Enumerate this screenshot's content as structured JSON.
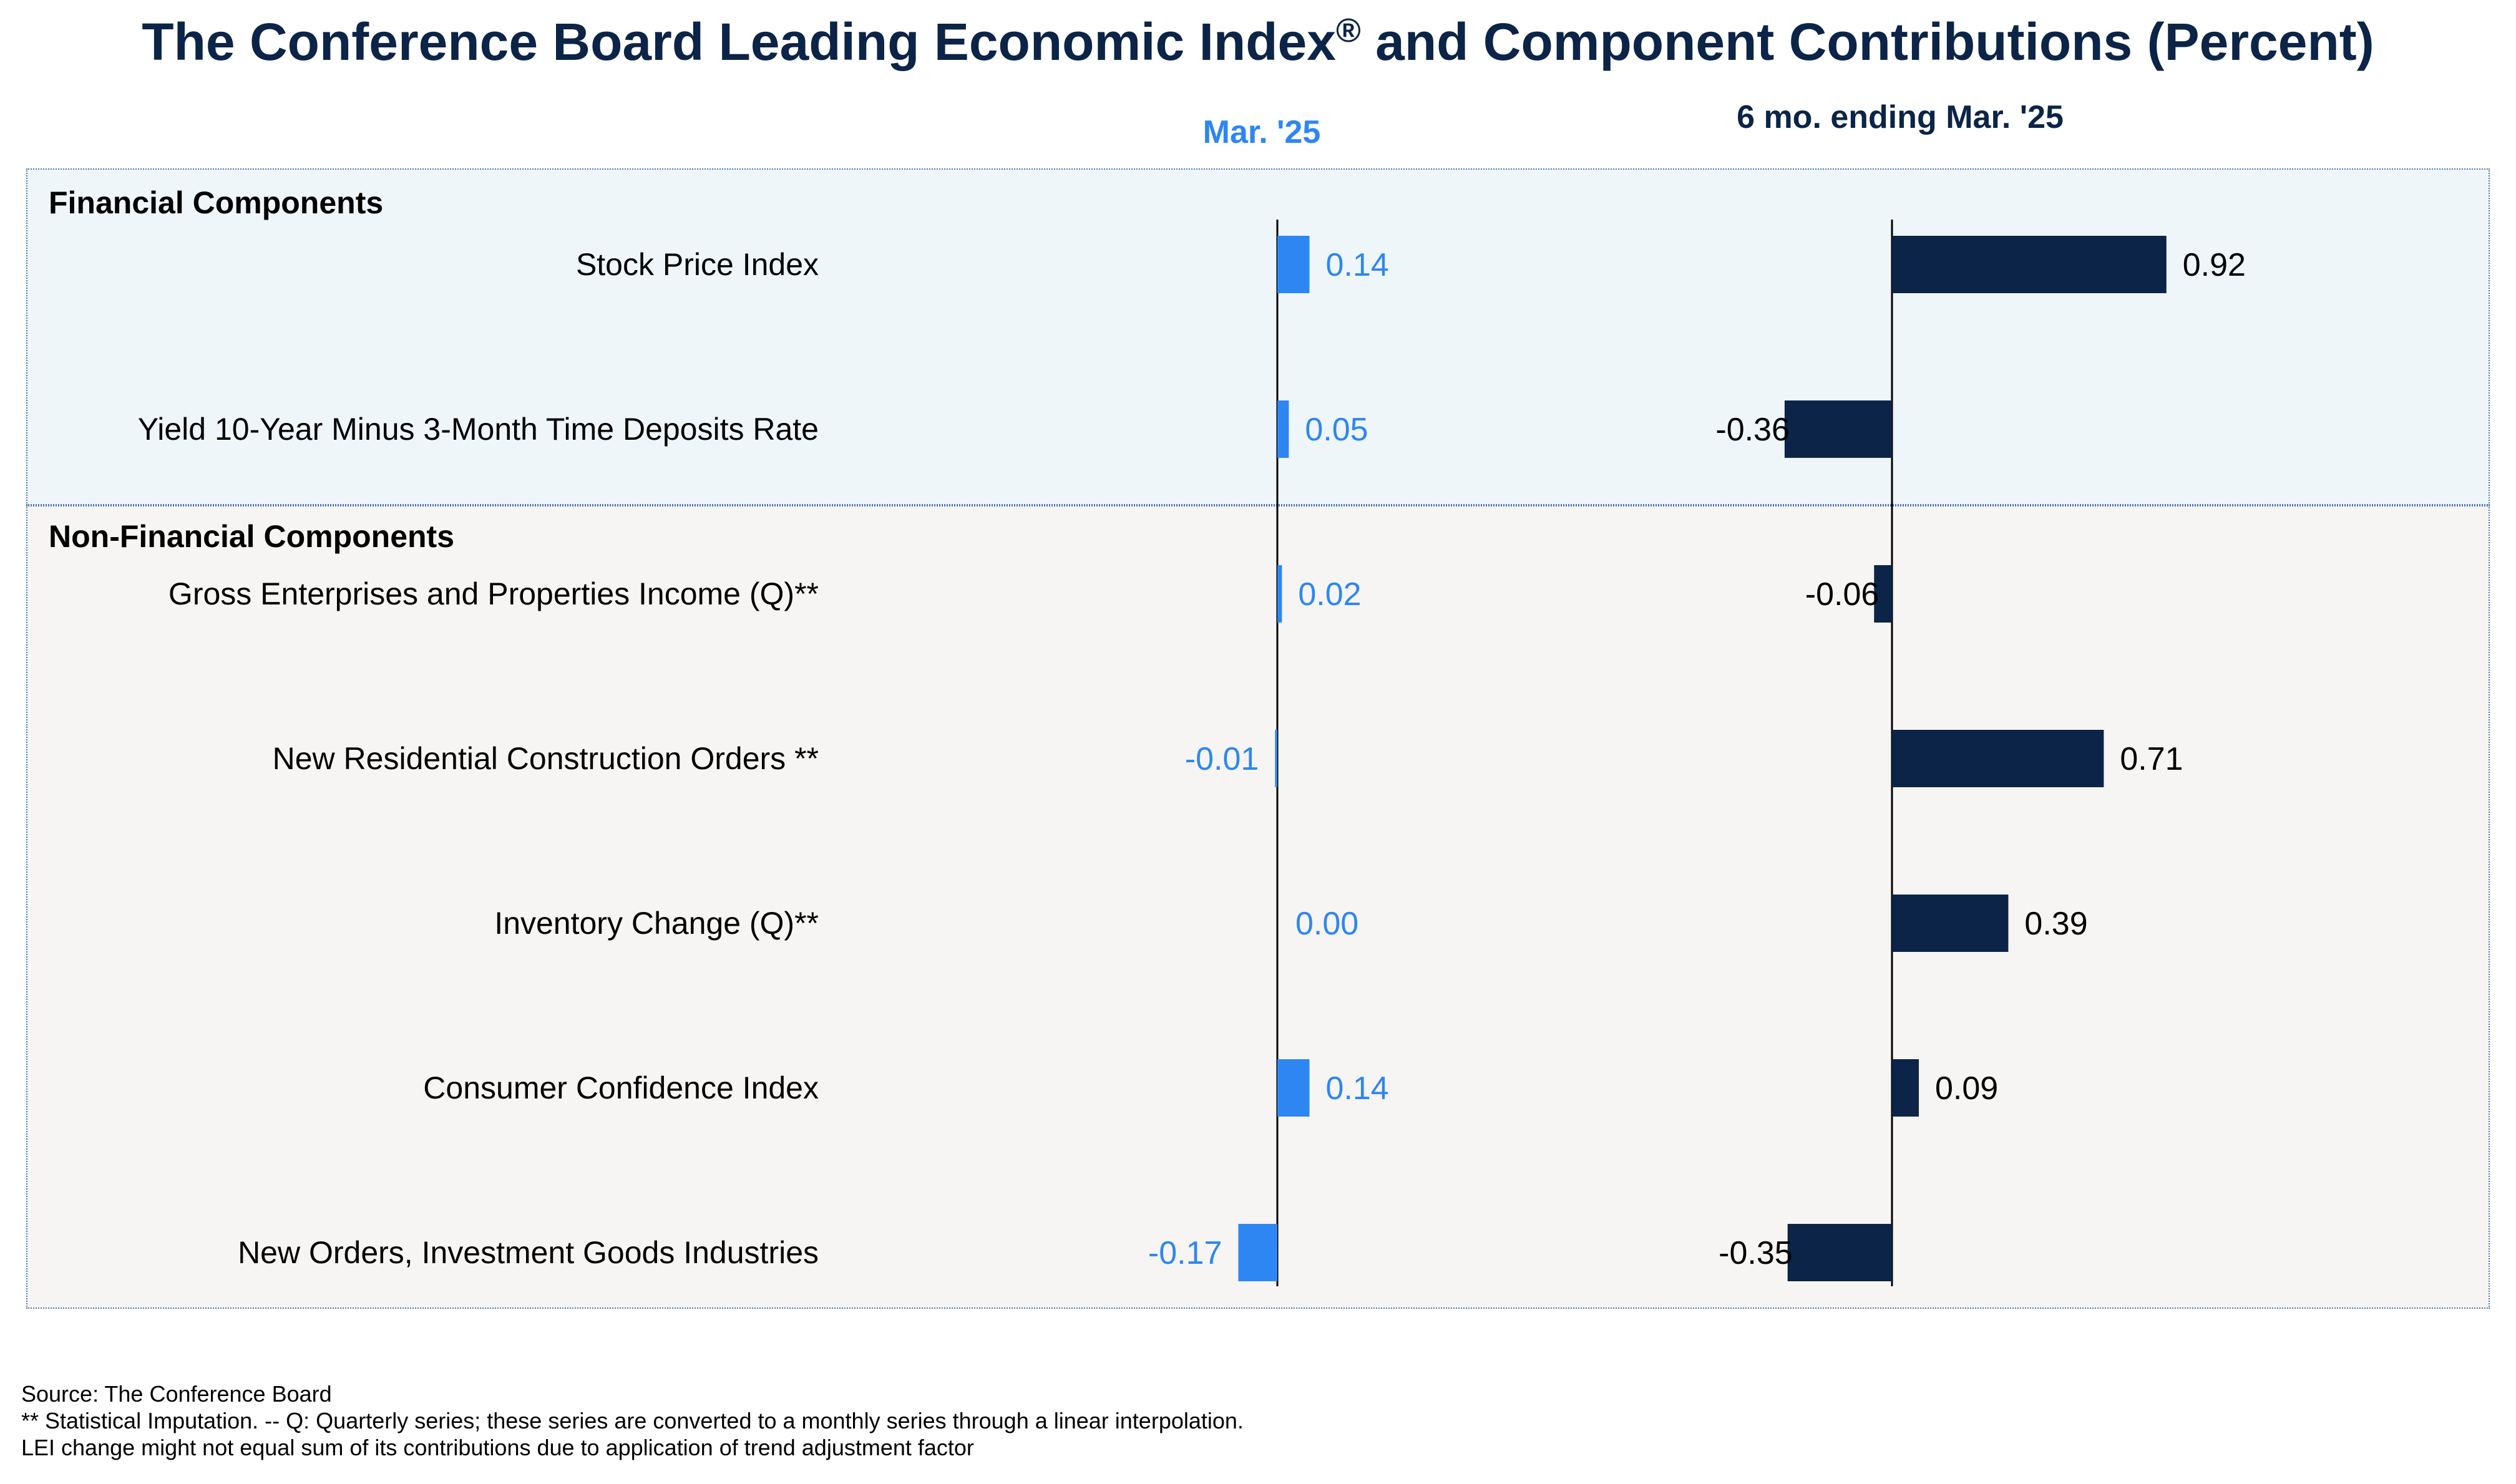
{
  "title": "The Conference Board Leading Economic Index",
  "title_reg": "®",
  "title_suffix": " and Component Contributions (Percent)",
  "columns": {
    "monthly": "Mar. '25",
    "six_month": "6 mo. ending Mar. '25"
  },
  "groups": {
    "financial": "Financial Components",
    "non_financial": "Non-Financial Components"
  },
  "colors": {
    "monthly": "#2e86f2",
    "six_month": "#0b2447",
    "financial_bg": "#eff6fa",
    "non_financial_bg": "#f6f5f3"
  },
  "chart_data": {
    "type": "bar",
    "orientation": "horizontal",
    "categories": [
      "Stock Price Index",
      "Yield 10-Year Minus 3-Month Time Deposits Rate",
      "Gross Enterprises and Properties Income (Q)**",
      "New Residential Construction Orders **",
      "Inventory Change (Q)**",
      "Consumer Confidence Index",
      "New Orders, Investment Goods Industries"
    ],
    "series": [
      {
        "name": "Mar. '25",
        "values": [
          0.14,
          0.05,
          0.02,
          -0.01,
          0.0,
          0.14,
          -0.17
        ]
      },
      {
        "name": "6 mo. ending Mar. '25",
        "values": [
          0.92,
          -0.36,
          -0.06,
          0.71,
          0.39,
          0.09,
          -0.35
        ]
      }
    ]
  },
  "footnotes": [
    "Source: The Conference Board",
    "**  Statistical Imputation. -- Q: Quarterly series; these series are converted to a monthly series through a linear interpolation.",
    "LEI change might not equal sum of its contributions due to application of trend adjustment factor"
  ]
}
